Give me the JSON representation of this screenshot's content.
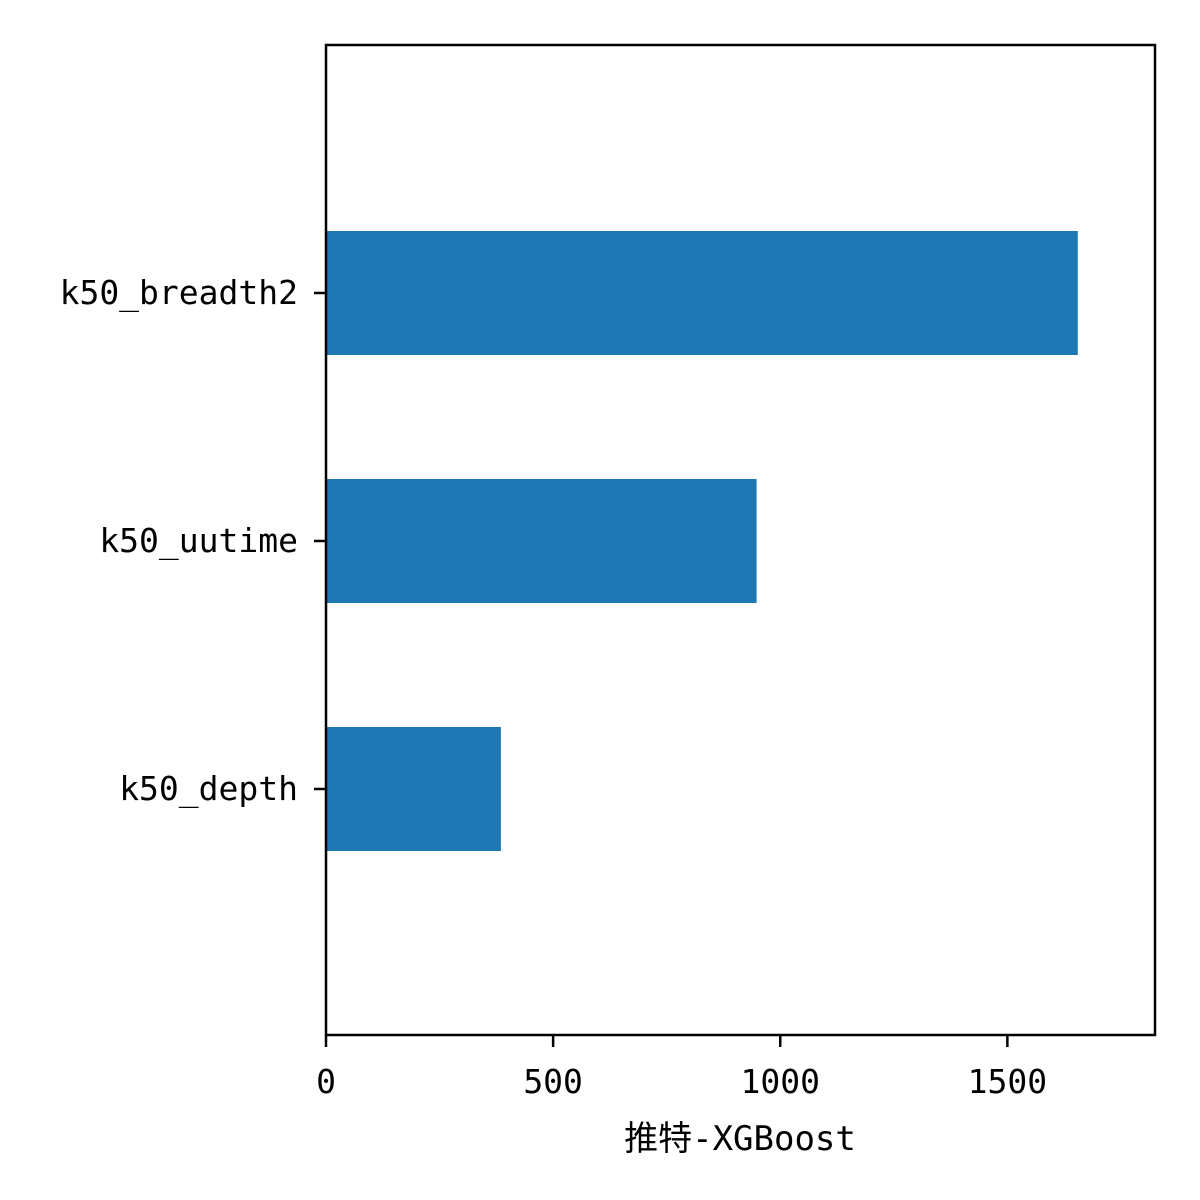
{
  "chart_data": {
    "type": "bar",
    "orientation": "horizontal",
    "categories": [
      "k50_breadth2",
      "k50_uutime",
      "k50_depth"
    ],
    "values": [
      1655,
      948,
      385
    ],
    "xlabel": "推特-XGBoost",
    "ylabel": "",
    "xlim": [
      0,
      1825
    ],
    "xticks": [
      0,
      500,
      1000,
      1500
    ],
    "grid": false,
    "bar_color": "#1f77b4"
  }
}
